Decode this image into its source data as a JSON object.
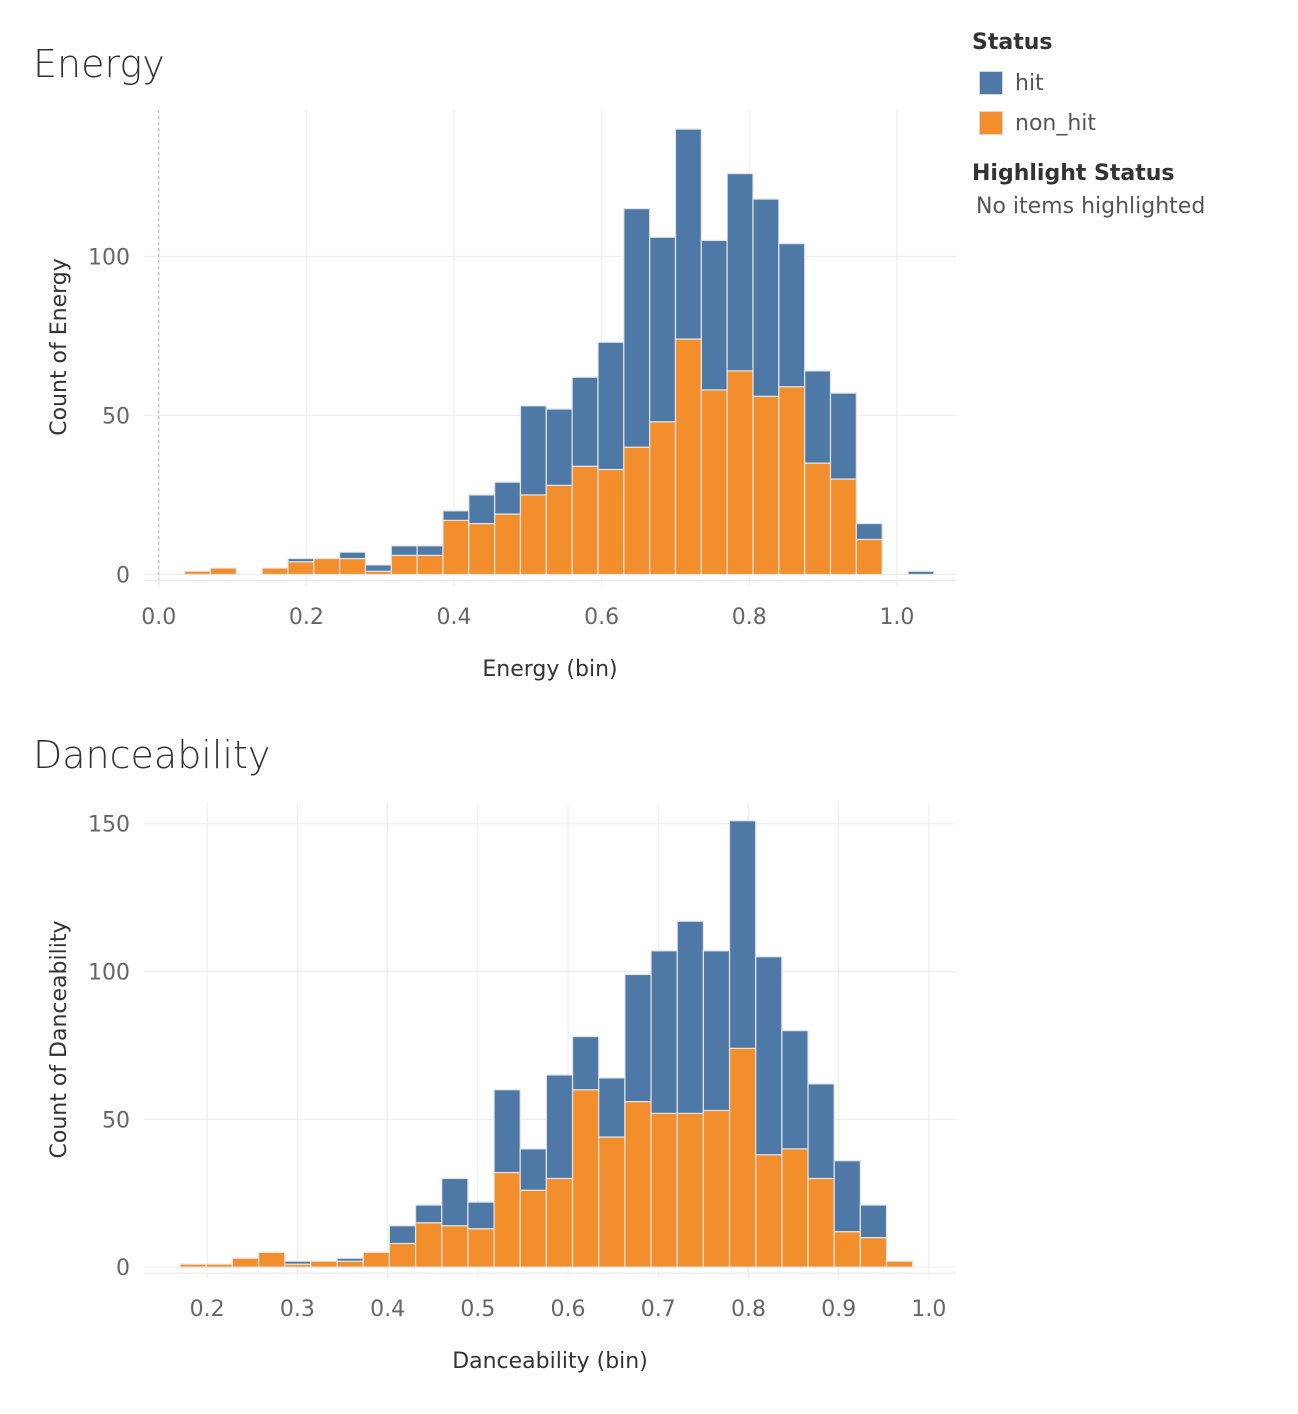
{
  "legend": {
    "title": "Status",
    "items": [
      {
        "label": "hit",
        "color": "#4e79a7"
      },
      {
        "label": "non_hit",
        "color": "#f28e2b"
      }
    ],
    "highlight_title": "Highlight Status",
    "highlight_text": "No items highlighted"
  },
  "chart_data": [
    {
      "type": "bar",
      "stacked": true,
      "title": "Energy",
      "xlabel": "Energy (bin)",
      "ylabel": "Count of Energy",
      "xlim": [
        -0.02,
        1.08
      ],
      "ylim": [
        -3,
        146
      ],
      "xticks": [
        0.0,
        0.2,
        0.4,
        0.6,
        0.8,
        1.0
      ],
      "xtick_labels": [
        "0.0",
        "0.2",
        "0.4",
        "0.6",
        "0.8",
        "1.0"
      ],
      "yticks": [
        0,
        50,
        100
      ],
      "bin_width": 0.035,
      "bin_start": [
        0.035,
        0.07,
        0.14,
        0.175,
        0.21,
        0.245,
        0.28,
        0.315,
        0.35,
        0.385,
        0.42,
        0.455,
        0.49,
        0.525,
        0.56,
        0.595,
        0.63,
        0.665,
        0.7,
        0.735,
        0.77,
        0.805,
        0.84,
        0.875,
        0.91,
        0.945,
        0.98,
        1.015
      ],
      "series": [
        {
          "name": "non_hit",
          "color": "#f28e2b",
          "values": [
            1,
            2,
            2,
            4,
            5,
            5,
            1,
            6,
            6,
            17,
            16,
            19,
            25,
            28,
            34,
            33,
            40,
            48,
            74,
            58,
            64,
            56,
            59,
            35,
            30,
            11,
            0,
            0
          ]
        },
        {
          "name": "hit",
          "color": "#4e79a7",
          "values": [
            0,
            0,
            0,
            1,
            0,
            2,
            2,
            3,
            3,
            3,
            9,
            10,
            28,
            24,
            28,
            40,
            75,
            58,
            66,
            47,
            62,
            62,
            45,
            29,
            27,
            5,
            0,
            1
          ]
        }
      ]
    },
    {
      "type": "bar",
      "stacked": true,
      "title": "Danceability",
      "xlabel": "Danceability (bin)",
      "ylabel": "Count of Danceability",
      "xlim": [
        0.13,
        1.03
      ],
      "ylim": [
        -3,
        157
      ],
      "xticks": [
        0.2,
        0.3,
        0.4,
        0.5,
        0.6,
        0.7,
        0.8,
        0.9,
        1.0
      ],
      "xtick_labels": [
        "0.2",
        "0.3",
        "0.4",
        "0.5",
        "0.6",
        "0.7",
        "0.8",
        "0.9",
        "1.0"
      ],
      "yticks": [
        0,
        50,
        100,
        150
      ],
      "bin_width": 0.029,
      "bin_start": [
        0.17,
        0.199,
        0.228,
        0.257,
        0.286,
        0.315,
        0.344,
        0.373,
        0.402,
        0.431,
        0.46,
        0.489,
        0.518,
        0.547,
        0.576,
        0.605,
        0.634,
        0.663,
        0.692,
        0.721,
        0.75,
        0.779,
        0.808,
        0.837,
        0.866,
        0.895,
        0.924,
        0.953
      ],
      "series": [
        {
          "name": "non_hit",
          "color": "#f28e2b",
          "values": [
            1,
            1,
            3,
            5,
            1,
            2,
            2,
            5,
            8,
            15,
            14,
            13,
            32,
            26,
            30,
            60,
            44,
            56,
            52,
            52,
            53,
            74,
            38,
            40,
            30,
            12,
            10,
            2
          ]
        },
        {
          "name": "hit",
          "color": "#4e79a7",
          "values": [
            0,
            0,
            0,
            0,
            1,
            0,
            1,
            0,
            6,
            6,
            16,
            9,
            28,
            14,
            35,
            18,
            20,
            43,
            55,
            65,
            54,
            77,
            67,
            40,
            32,
            24,
            11,
            0
          ]
        }
      ]
    }
  ]
}
